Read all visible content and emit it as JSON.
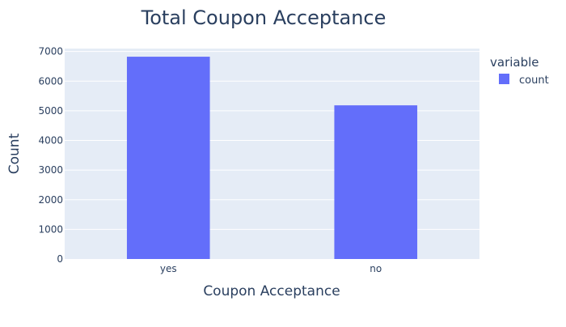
{
  "chart_data": {
    "type": "bar",
    "title": "Total Coupon Acceptance",
    "xlabel": "Coupon Acceptance",
    "ylabel": "Count",
    "categories": [
      "yes",
      "no"
    ],
    "series": [
      {
        "name": "count",
        "values": [
          6825,
          5185
        ]
      }
    ],
    "ylim": [
      0,
      7100
    ],
    "yticks": [
      0,
      1000,
      2000,
      3000,
      4000,
      5000,
      6000,
      7000
    ],
    "grid": true,
    "legend": {
      "title": "variable",
      "placement": "top-right"
    },
    "colors": {
      "bar": "#636efa",
      "plot_bg": "#e5ecf6",
      "grid": "#ffffff",
      "text": "#2a3f5f"
    }
  }
}
